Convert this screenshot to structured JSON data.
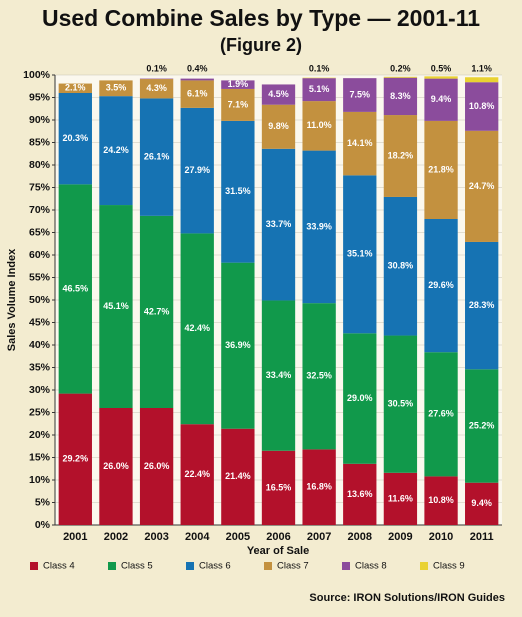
{
  "chart_data": {
    "type": "stacked-bar",
    "title": "Used Combine Sales by Type — 2001-11",
    "subtitle": "(Figure 2)",
    "x_label": "Year of Sale",
    "y_label": "Sales Volume Index",
    "source": "Source: IRON Solutions/IRON Guides",
    "categories": [
      "2001",
      "2002",
      "2003",
      "2004",
      "2005",
      "2006",
      "2007",
      "2008",
      "2009",
      "2010",
      "2011"
    ],
    "ylim": [
      0,
      100
    ],
    "yticks": [
      {
        "value": 0,
        "label": "0%"
      },
      {
        "value": 5,
        "label": "5%"
      },
      {
        "value": 10,
        "label": "10%"
      },
      {
        "value": 15,
        "label": "15%"
      },
      {
        "value": 20,
        "label": "20%"
      },
      {
        "value": 25,
        "label": "25%"
      },
      {
        "value": 30,
        "label": "30%"
      },
      {
        "value": 35,
        "label": "35%"
      },
      {
        "value": 40,
        "label": "40%"
      },
      {
        "value": 45,
        "label": "45%"
      },
      {
        "value": 50,
        "label": "50%"
      },
      {
        "value": 55,
        "label": "55%"
      },
      {
        "value": 60,
        "label": "60%"
      },
      {
        "value": 65,
        "label": "65%"
      },
      {
        "value": 70,
        "label": "70%"
      },
      {
        "value": 75,
        "label": "75%"
      },
      {
        "value": 80,
        "label": "80%"
      },
      {
        "value": 85,
        "label": "85%"
      },
      {
        "value": 90,
        "label": "90%"
      },
      {
        "value": 95,
        "label": "95%"
      },
      {
        "value": 100,
        "label": "100%"
      }
    ],
    "grid": true,
    "series": [
      {
        "name": "Class 4",
        "color": "#b3112b",
        "values": [
          29.2,
          26.0,
          26.0,
          22.4,
          21.4,
          16.5,
          16.8,
          13.6,
          11.6,
          10.8,
          9.4
        ],
        "value_labels": [
          "29.2%",
          "26.0%",
          "26.0%",
          "22.4%",
          "21.4%",
          "16.5%",
          "16.8%",
          "13.6%",
          "11.6%",
          "10.8%",
          "9.4%"
        ]
      },
      {
        "name": "Class 5",
        "color": "#11994b",
        "values": [
          46.5,
          45.1,
          42.7,
          42.4,
          36.9,
          33.4,
          32.5,
          29.0,
          30.5,
          27.6,
          25.2
        ],
        "value_labels": [
          "46.5%",
          "45.1%",
          "42.7%",
          "42.4%",
          "36.9%",
          "33.4%",
          "32.5%",
          "29.0%",
          "30.5%",
          "27.6%",
          "25.2%"
        ]
      },
      {
        "name": "Class 6",
        "color": "#1673b3",
        "values": [
          20.3,
          24.2,
          26.1,
          27.9,
          31.5,
          33.7,
          33.9,
          35.1,
          30.8,
          29.6,
          28.3
        ],
        "value_labels": [
          "20.3%",
          "24.2%",
          "26.1%",
          "27.9%",
          "31.5%",
          "33.7%",
          "33.9%",
          "35.1%",
          "30.8%",
          "29.6%",
          "28.3%"
        ]
      },
      {
        "name": "Class 7",
        "color": "#c3913f",
        "values": [
          2.1,
          3.5,
          4.3,
          6.1,
          7.1,
          9.8,
          11.0,
          14.1,
          18.2,
          21.8,
          24.7
        ],
        "value_labels": [
          "2.1%",
          "3.5%",
          "4.3%",
          "6.1%",
          "7.1%",
          "9.8%",
          "11.0%",
          "14.1%",
          "18.2%",
          "21.8%",
          "24.7%"
        ]
      },
      {
        "name": "Class 8",
        "color": "#8b4c9c",
        "values": [
          null,
          null,
          0.1,
          0.4,
          1.9,
          4.5,
          5.1,
          7.5,
          8.3,
          9.4,
          10.8
        ],
        "value_labels": [
          null,
          null,
          "0.1%",
          "0.4%",
          "1.9%",
          "4.5%",
          "5.1%",
          "7.5%",
          "8.3%",
          "9.4%",
          "10.8%"
        ]
      },
      {
        "name": "Class 9",
        "color": "#e9d232",
        "values": [
          null,
          null,
          null,
          null,
          null,
          null,
          0.1,
          null,
          0.2,
          0.5,
          1.1
        ],
        "value_labels": [
          null,
          null,
          null,
          null,
          null,
          null,
          "0.1%",
          null,
          "0.2%",
          "0.5%",
          "1.1%"
        ]
      }
    ]
  }
}
